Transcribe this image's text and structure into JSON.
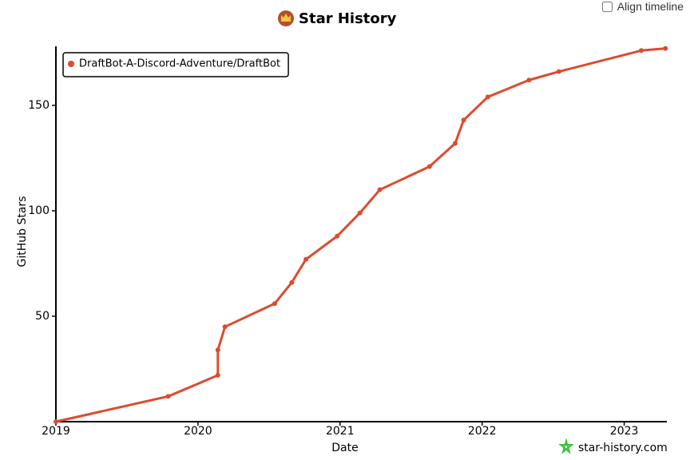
{
  "chart_data": {
    "type": "line",
    "title": "Star History",
    "x_label": "Date",
    "y_label": "GitHub Stars",
    "x": [
      2019.0,
      2019.79,
      2020.14,
      2020.14,
      2020.19,
      2020.54,
      2020.66,
      2020.76,
      2020.98,
      2021.14,
      2021.28,
      2021.63,
      2021.81,
      2021.87,
      2022.04,
      2022.33,
      2022.54,
      2023.12,
      2023.29
    ],
    "series": [
      {
        "name": "DraftBot-A-Discord-Adventure/DraftBot",
        "color": "#dd4b2f",
        "values": [
          0,
          12,
          22,
          34,
          45,
          56,
          66,
          77,
          88,
          99,
          110,
          121,
          132,
          143,
          154,
          162,
          166,
          176,
          177
        ]
      }
    ],
    "xlim": [
      2019,
      2023.3
    ],
    "ylim": [
      0,
      178
    ],
    "xticks": [
      2019,
      2020,
      2021,
      2022,
      2023
    ],
    "yticks": [
      50,
      100,
      150
    ],
    "legend": "top-left"
  },
  "controls": {
    "align_timeline": "Align timeline"
  },
  "watermark": "star-history.com"
}
